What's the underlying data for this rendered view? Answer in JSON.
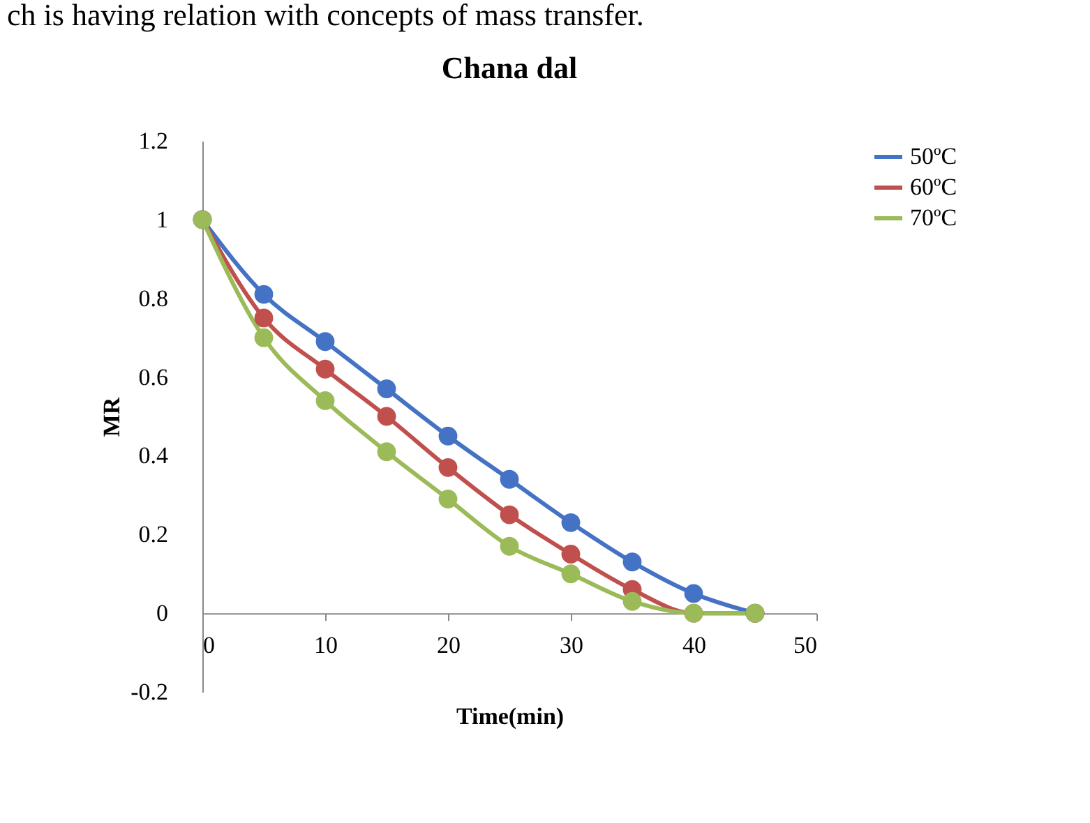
{
  "chart_data": {
    "type": "line",
    "title": "Chana dal",
    "xlabel": "Time(min)",
    "ylabel": "MR",
    "annotations": [
      "ch is having relation with concepts of mass transfer."
    ],
    "x": [
      0,
      5,
      10,
      15,
      20,
      25,
      30,
      35,
      40,
      45
    ],
    "series": [
      {
        "name": "50ºC",
        "color": "#4472c4",
        "values": [
          1,
          0.81,
          0.69,
          0.57,
          0.45,
          0.34,
          0.23,
          0.13,
          0.05,
          0
        ]
      },
      {
        "name": "60ºC",
        "color": "#c0504d",
        "values": [
          1,
          0.75,
          0.62,
          0.5,
          0.37,
          0.25,
          0.15,
          0.06,
          0,
          0
        ]
      },
      {
        "name": "70ºC",
        "color": "#9bbb59",
        "values": [
          1,
          0.7,
          0.54,
          0.41,
          0.29,
          0.17,
          0.1,
          0.03,
          0,
          0
        ]
      }
    ],
    "xlim": [
      0,
      50
    ],
    "xticks": [
      0,
      10,
      20,
      30,
      40,
      50
    ],
    "ylim": [
      -0.2,
      1.2
    ],
    "yticks": [
      -0.2,
      0,
      0.2,
      0.4,
      0.6,
      0.8,
      1,
      1.2
    ],
    "marker": "circle",
    "line_style": "solid",
    "grid": false,
    "legend": "right"
  }
}
